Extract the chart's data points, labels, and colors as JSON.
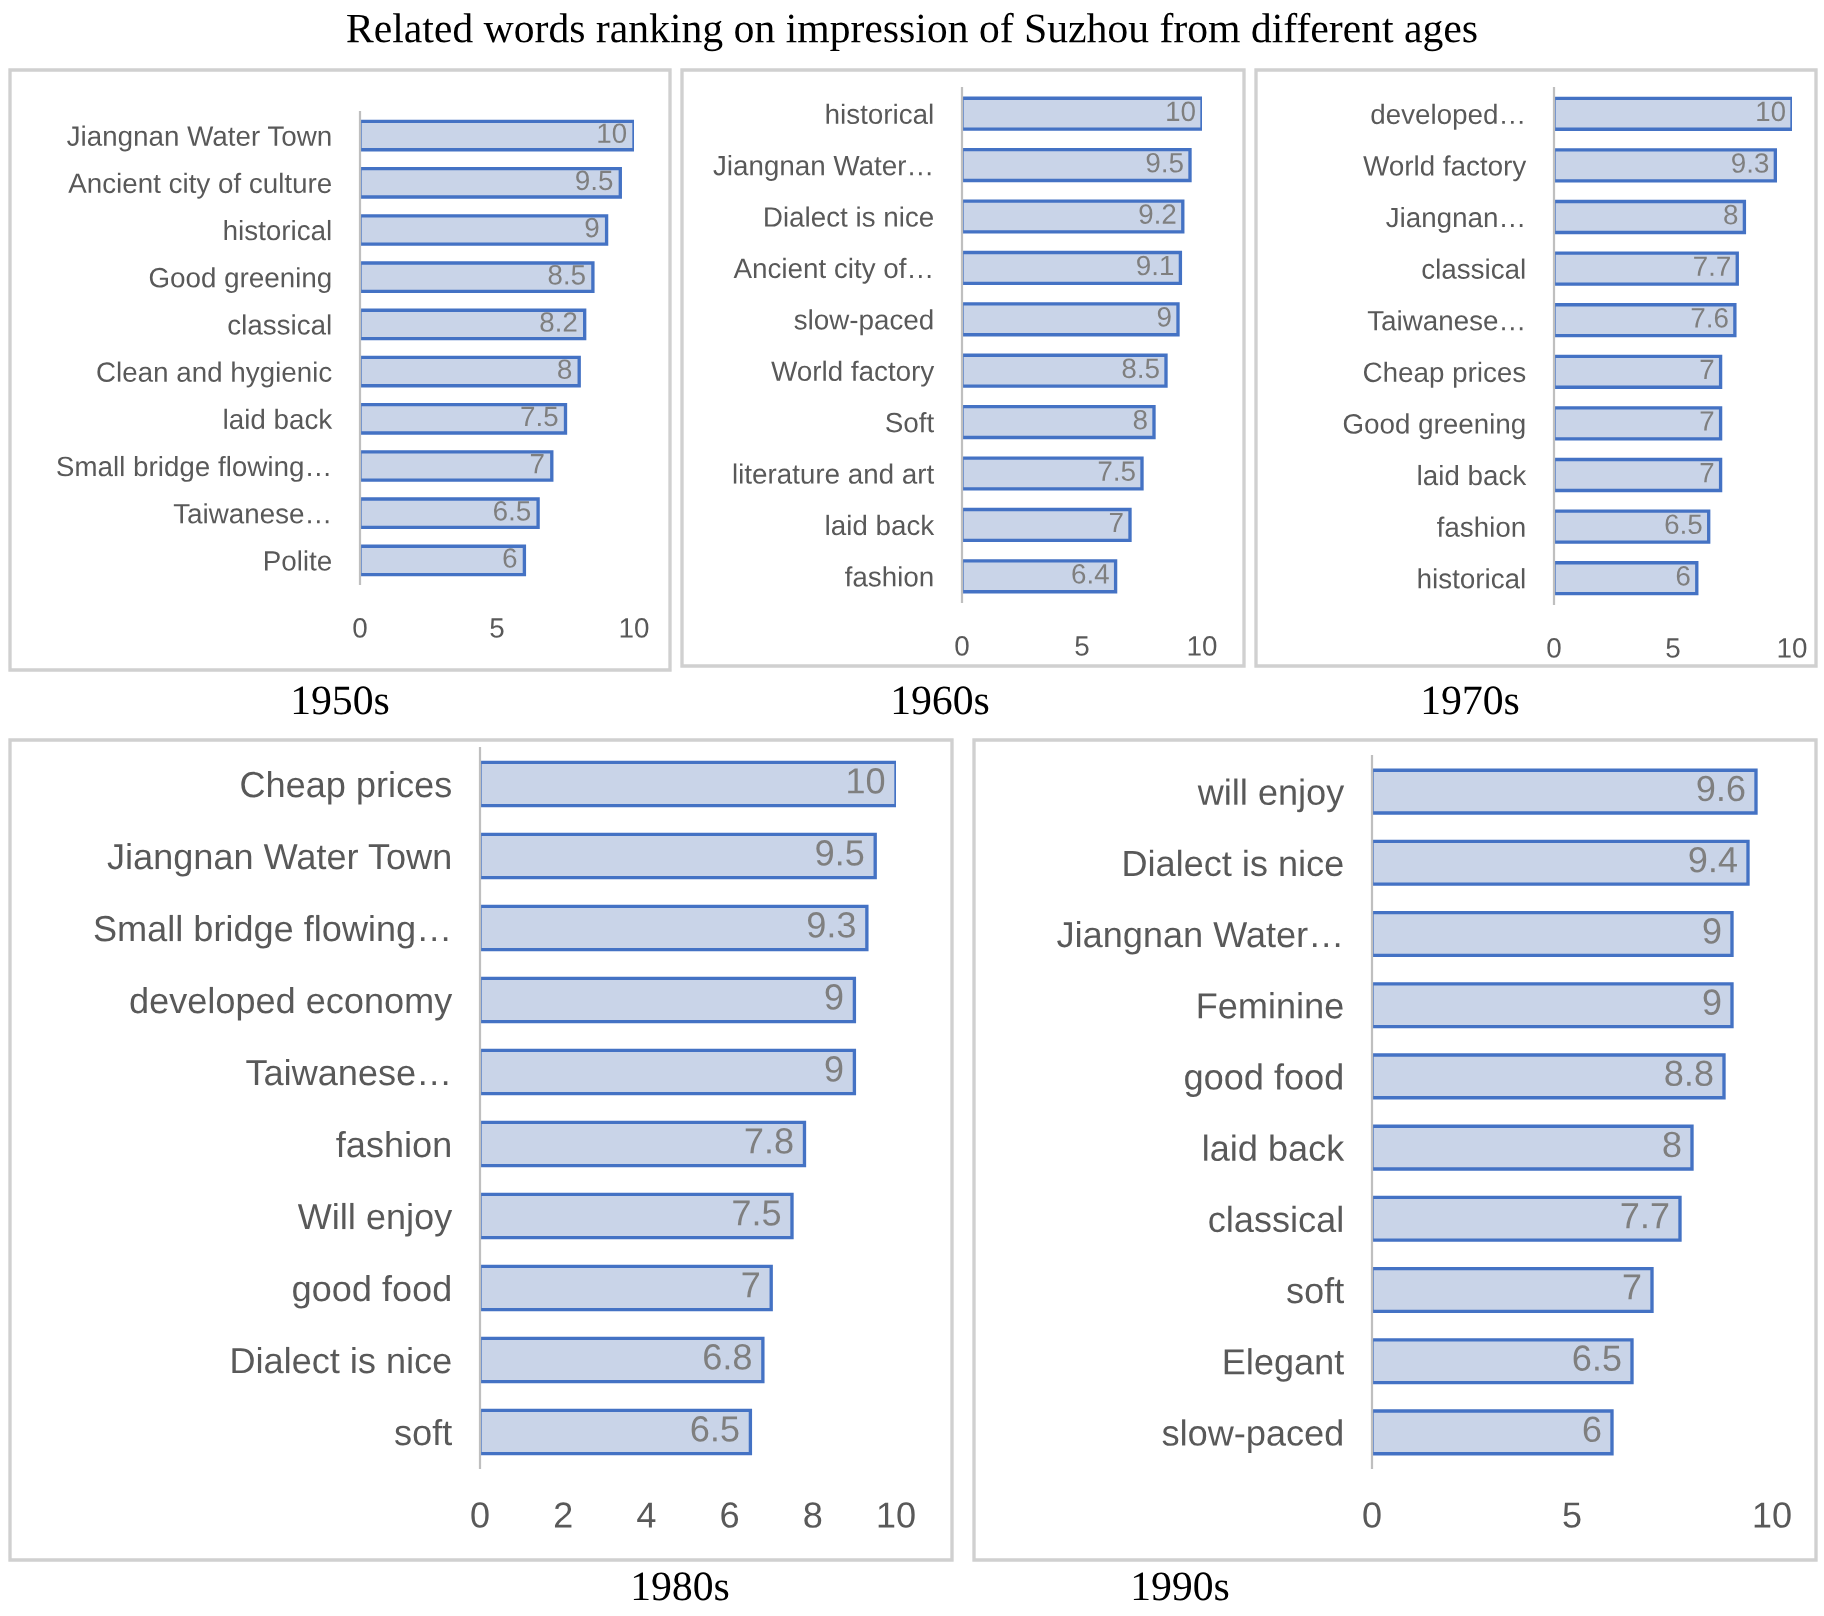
{
  "chart_data": [
    {
      "type": "bar",
      "orientation": "horizontal",
      "title": "Related words ranking on impression of Suzhou from different ages",
      "xlabel": "1950s",
      "categories": [
        "Jiangnan Water Town",
        "Ancient city of culture",
        "historical",
        "Good greening",
        "classical",
        "Clean and hygienic",
        "laid back",
        "Small bridge flowing…",
        "Taiwanese…",
        "Polite"
      ],
      "values": [
        10,
        9.5,
        9,
        8.5,
        8.2,
        8,
        7.5,
        7,
        6.5,
        6
      ],
      "color": "#c9d4e8",
      "xlim": [
        0,
        10
      ],
      "xticks": [
        0,
        5,
        10
      ],
      "data_labels": true,
      "grid": false,
      "legend": false
    },
    {
      "type": "bar",
      "orientation": "horizontal",
      "xlabel": "1960s",
      "categories": [
        "historical",
        "Jiangnan Water…",
        "Dialect is nice",
        "Ancient city of…",
        "slow-paced",
        "World factory",
        "Soft",
        "literature and art",
        "laid back",
        "fashion"
      ],
      "values": [
        10,
        9.5,
        9.2,
        9.1,
        9,
        8.5,
        8,
        7.5,
        7,
        6.4
      ],
      "color": "#c9d4e8",
      "xlim": [
        0,
        10
      ],
      "xticks": [
        0,
        5,
        10
      ],
      "data_labels": true,
      "grid": false,
      "legend": false
    },
    {
      "type": "bar",
      "orientation": "horizontal",
      "xlabel": "1970s",
      "categories": [
        "developed…",
        "World factory",
        "Jiangnan…",
        "classical",
        "Taiwanese…",
        "Cheap prices",
        "Good greening",
        "laid back",
        "fashion",
        "historical"
      ],
      "values": [
        10,
        9.3,
        8,
        7.7,
        7.6,
        7,
        7,
        7,
        6.5,
        6
      ],
      "color": "#c9d4e8",
      "xlim": [
        0,
        10
      ],
      "xticks": [
        0,
        5,
        10
      ],
      "data_labels": true,
      "grid": false,
      "legend": false
    },
    {
      "type": "bar",
      "orientation": "horizontal",
      "xlabel": "1980s",
      "categories": [
        "Cheap prices",
        "Jiangnan Water Town",
        "Small bridge flowing…",
        "developed economy",
        "Taiwanese…",
        "fashion",
        "Will enjoy",
        "good food",
        "Dialect is nice",
        "soft"
      ],
      "values": [
        10,
        9.5,
        9.3,
        9,
        9,
        7.8,
        7.5,
        7,
        6.8,
        6.5
      ],
      "color": "#c9d4e8",
      "xlim": [
        0,
        10
      ],
      "xticks": [
        0,
        2,
        4,
        6,
        8,
        10
      ],
      "data_labels": true,
      "grid": false,
      "legend": false
    },
    {
      "type": "bar",
      "orientation": "horizontal",
      "xlabel": "1990s",
      "categories": [
        "will enjoy",
        "Dialect is nice",
        "Jiangnan Water…",
        "Feminine",
        "good food",
        "laid back",
        "classical",
        "soft",
        "Elegant",
        "slow-paced"
      ],
      "values": [
        9.6,
        9.4,
        9,
        9,
        8.8,
        8,
        7.7,
        7,
        6.5,
        6
      ],
      "color": "#c9d4e8",
      "xlim": [
        0,
        10
      ],
      "xticks": [
        0,
        5,
        10
      ],
      "data_labels": true,
      "grid": false,
      "legend": false
    }
  ]
}
